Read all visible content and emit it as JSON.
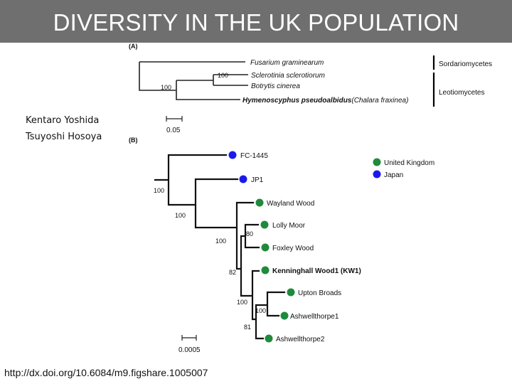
{
  "slide_title": "DIVERSITY IN THE UK POPULATION",
  "authors": [
    "Kentaro Yoshida",
    "Tsuyoshi Hosoya"
  ],
  "source_url": "http://dx.doi.org/10.6084/m9.figshare.1005007",
  "colors": {
    "title_bar": "#6f6f6f",
    "uk": "#1f8a3c",
    "japan": "#1a1aee"
  },
  "panel_a": {
    "label": "(A)",
    "taxa": {
      "fusarium": "Fusarium graminearum",
      "sclerotinia": "Sclerotinia sclerotiorum",
      "botrytis": "Botrytis cinerea",
      "hymeno_bold": "Hymenoscyphus pseudoalbidus",
      "hymeno_rest": "(Chalara fraxinea)"
    },
    "bootstrap": {
      "sclero_botry": "100",
      "leotio": "100"
    },
    "classes": {
      "sordario": "Sordariomycetes",
      "leotio": "Leotiomycetes"
    },
    "scale": "0.05"
  },
  "panel_b": {
    "label": "(B)",
    "legend": {
      "uk": "United Kingdom",
      "japan": "Japan"
    },
    "isolates": {
      "fc1445": "FC-1445",
      "jp1": "JP1",
      "wayland": "Wayland Wood",
      "lolly": "Lolly Moor",
      "foxley": "Foxley Wood",
      "kw1": "Kenninghall Wood1 (KW1)",
      "upton": "Upton Broads",
      "ash1": "Ashwellthorpe1",
      "ash2": "Ashwellthorpe2"
    },
    "bootstrap": {
      "root": "100",
      "jp_split": "100",
      "uk_clade": "100",
      "lolly_foxley": "80",
      "n82": "82",
      "n100b": "100",
      "upton_ash1": "100",
      "n81": "81"
    },
    "scale": "0.0005"
  }
}
